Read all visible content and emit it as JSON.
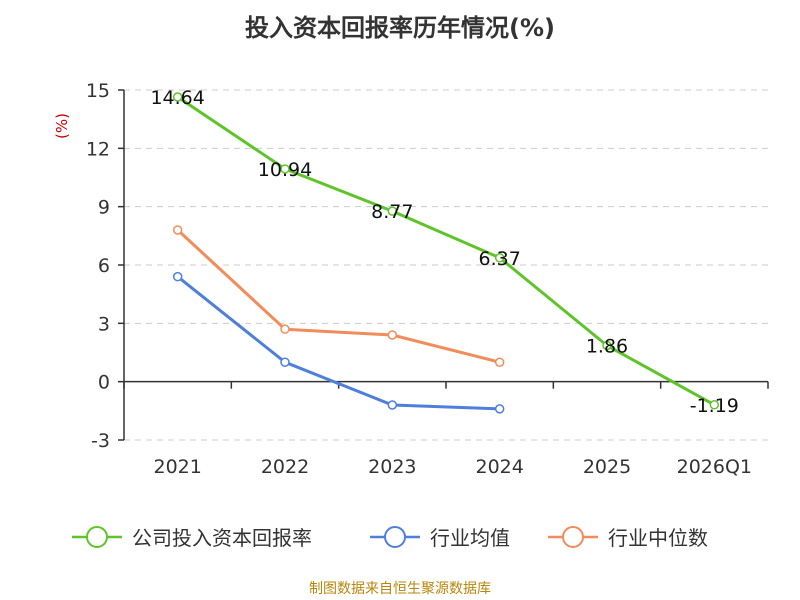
{
  "chart_data": {
    "type": "line",
    "title": "投入资本回报率历年情况(%)",
    "ylabel": "(%)",
    "categories": [
      "2021",
      "2022",
      "2023",
      "2024",
      "2025",
      "2026Q1"
    ],
    "ylim": [
      -3,
      15
    ],
    "yticks": [
      15,
      12,
      9,
      6,
      3,
      0,
      -3
    ],
    "grid": true,
    "legend_position": "bottom",
    "series": [
      {
        "name": "公司投入资本回报率",
        "color": "#5ec42a",
        "values": [
          14.64,
          10.94,
          8.77,
          6.37,
          1.86,
          -1.19
        ],
        "labels": [
          "14.64",
          "10.94",
          "8.77",
          "6.37",
          "1.86",
          "-1.19"
        ]
      },
      {
        "name": "行业均值",
        "color": "#4e7fdc",
        "values": [
          5.4,
          1.0,
          -1.2,
          -1.4,
          null,
          null
        ]
      },
      {
        "name": "行业中位数",
        "color": "#f28c5a",
        "values": [
          7.8,
          2.7,
          2.4,
          1.0,
          null,
          null
        ]
      }
    ]
  },
  "source": "制图数据来自恒生聚源数据库",
  "colors": {
    "grid": "#cccccc",
    "axis": "#333333",
    "ylabel": "#cc0000",
    "source": "#b8860b"
  }
}
